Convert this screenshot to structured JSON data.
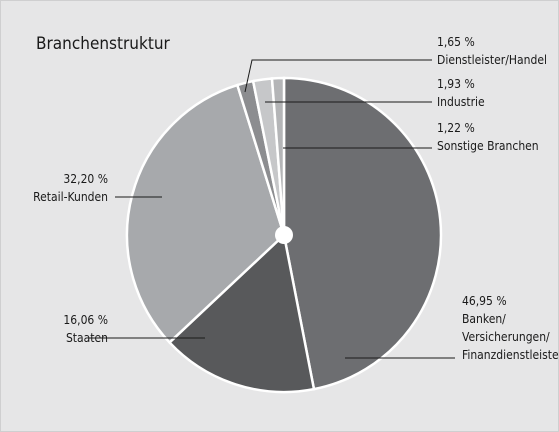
{
  "chart_data": {
    "type": "pie",
    "title": "Branchenstruktur",
    "categories": [
      "Banken/\nVersicherungen/\nFinanzdienstleister",
      "Staaten",
      "Retail-Kunden",
      "Dienstleister/Handel",
      "Industrie",
      "Sonstige Branchen"
    ],
    "values": [
      46.95,
      16.06,
      32.2,
      1.65,
      1.93,
      1.22
    ],
    "value_labels": [
      "46,95 %",
      "16,06 %",
      "32,20 %",
      "1,65 %",
      "1,93 %",
      "1,22 %"
    ],
    "colors": [
      "#6d6e71",
      "#58595b",
      "#a7a9ac",
      "#8c8d90",
      "#c6c7c9",
      "#b4b5b7"
    ]
  }
}
